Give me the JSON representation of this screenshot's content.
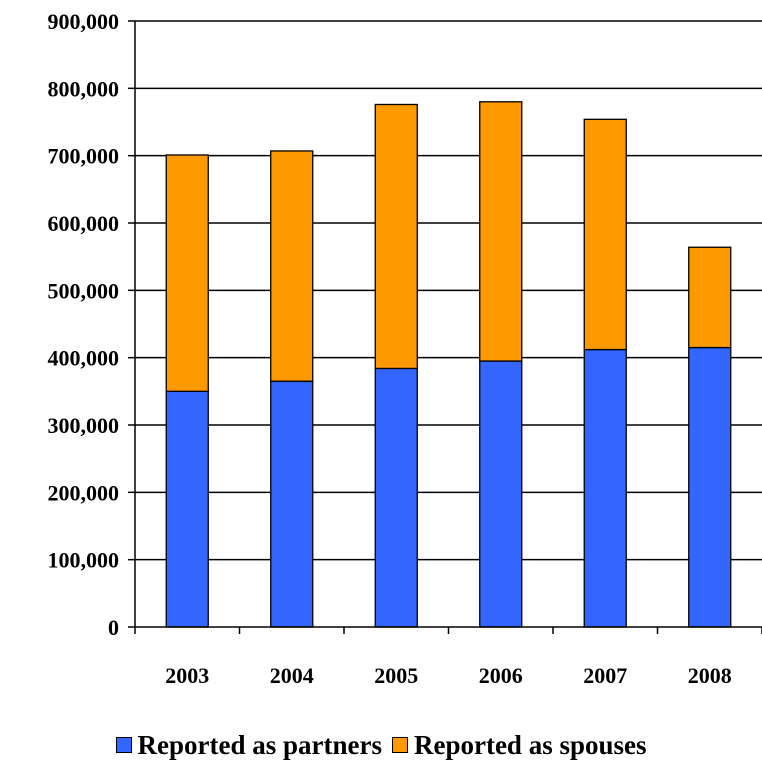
{
  "chart_data": {
    "type": "bar",
    "stacked": true,
    "categories": [
      "2003",
      "2004",
      "2005",
      "2006",
      "2007",
      "2008"
    ],
    "series": [
      {
        "name": "Reported as partners",
        "color": "#3366FF",
        "values": [
          350000,
          365000,
          384000,
          395000,
          412000,
          415000
        ]
      },
      {
        "name": "Reported as spouses",
        "color": "#FF9900",
        "values": [
          351000,
          342000,
          392000,
          385000,
          342000,
          149000
        ]
      }
    ],
    "ylim": [
      0,
      900000
    ],
    "yticks": [
      "0",
      "100,000",
      "200,000",
      "300,000",
      "400,000",
      "500,000",
      "600,000",
      "700,000",
      "800,000",
      "900,000"
    ],
    "ytick_values": [
      0,
      100000,
      200000,
      300000,
      400000,
      500000,
      600000,
      700000,
      800000,
      900000
    ],
    "grid": true,
    "legend": "bottom",
    "title": "",
    "xlabel": "",
    "ylabel": ""
  }
}
